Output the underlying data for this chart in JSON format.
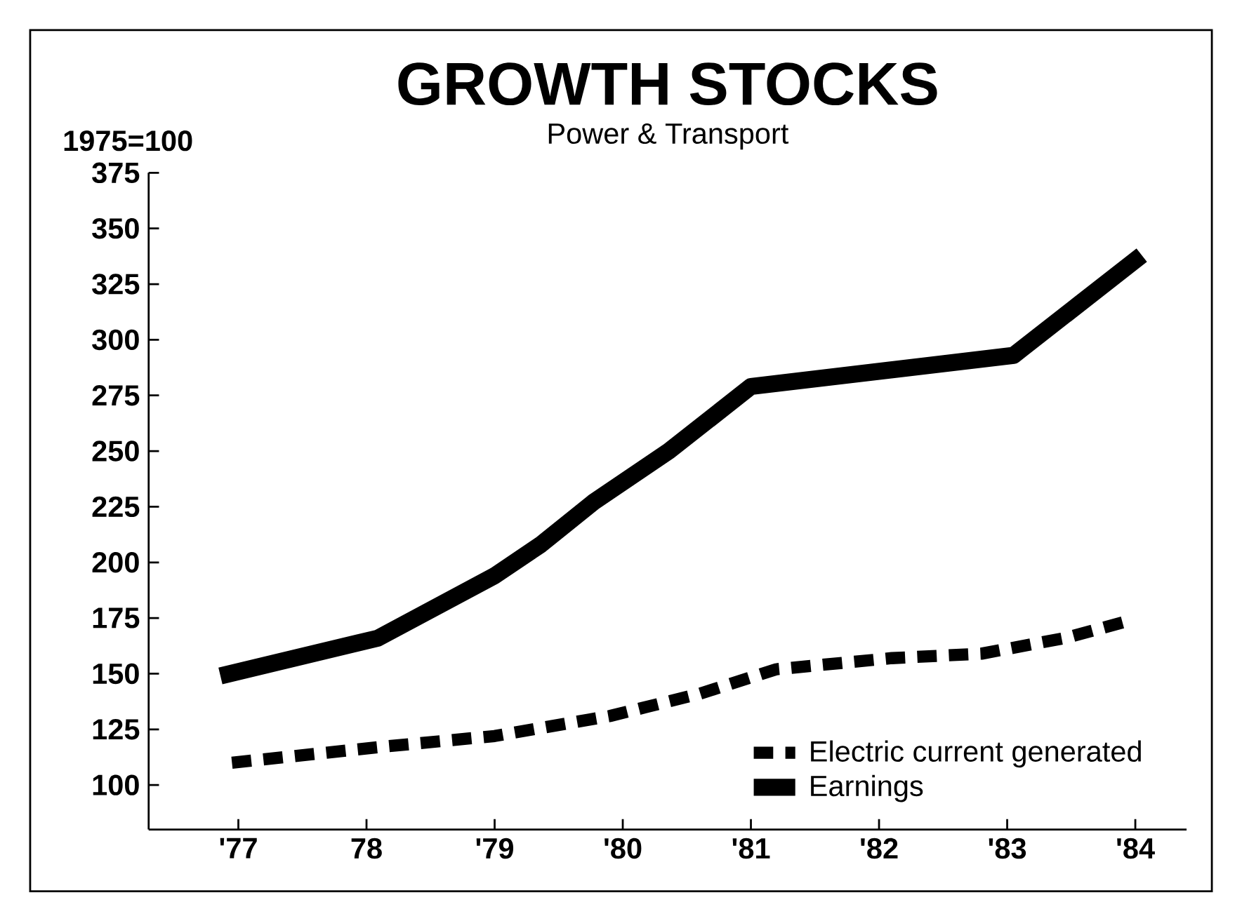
{
  "chart_data": {
    "type": "line",
    "title": "GROWTH STOCKS",
    "subtitle": "Power & Transport",
    "ylabel": "1975=100",
    "xlim": [
      1976.3,
      1984.4
    ],
    "xticks": [
      {
        "value": 1977,
        "label": "'77"
      },
      {
        "value": 1978,
        "label": "78"
      },
      {
        "value": 1979,
        "label": "'79"
      },
      {
        "value": 1980,
        "label": "'80"
      },
      {
        "value": 1981,
        "label": "'81"
      },
      {
        "value": 1982,
        "label": "'82"
      },
      {
        "value": 1983,
        "label": "'83"
      },
      {
        "value": 1984,
        "label": "'84"
      }
    ],
    "ylim": [
      80,
      375
    ],
    "yticks": [
      100,
      125,
      150,
      175,
      200,
      225,
      250,
      275,
      300,
      325,
      350,
      375
    ],
    "legend": "bottom right",
    "grid": false,
    "series": [
      {
        "name": "Electric current generated",
        "color": "#000000",
        "line_style": "dashed",
        "x": [
          1976.95,
          1978.09,
          1979.0,
          1979.9,
          1980.6,
          1981.2,
          1982.1,
          1982.8,
          1983.45,
          1983.9
        ],
        "values": [
          110,
          117,
          122,
          131,
          141,
          152,
          157,
          159,
          166,
          173
        ]
      },
      {
        "name": "Earnings",
        "color": "#000000",
        "line_style": "solid",
        "x": [
          1976.86,
          1978.09,
          1979.0,
          1979.36,
          1979.77,
          1980.36,
          1981.0,
          1983.05,
          1984.05
        ],
        "values": [
          149,
          166,
          194,
          208,
          227,
          250,
          279,
          293,
          338
        ]
      }
    ]
  }
}
